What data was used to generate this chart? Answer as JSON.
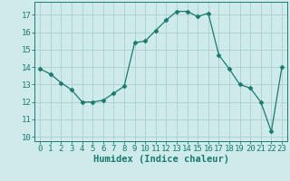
{
  "x": [
    0,
    1,
    2,
    3,
    4,
    5,
    6,
    7,
    8,
    9,
    10,
    11,
    12,
    13,
    14,
    15,
    16,
    17,
    18,
    19,
    20,
    21,
    22,
    23
  ],
  "y": [
    13.9,
    13.6,
    13.1,
    12.7,
    12.0,
    12.0,
    12.1,
    12.5,
    12.9,
    15.4,
    15.5,
    16.1,
    16.7,
    17.2,
    17.2,
    16.9,
    17.1,
    14.7,
    13.9,
    13.0,
    12.8,
    12.0,
    10.3,
    14.0
  ],
  "xlabel": "Humidex (Indice chaleur)",
  "xlim": [
    -0.5,
    23.5
  ],
  "ylim": [
    9.75,
    17.75
  ],
  "yticks": [
    10,
    11,
    12,
    13,
    14,
    15,
    16,
    17
  ],
  "xticks": [
    0,
    1,
    2,
    3,
    4,
    5,
    6,
    7,
    8,
    9,
    10,
    11,
    12,
    13,
    14,
    15,
    16,
    17,
    18,
    19,
    20,
    21,
    22,
    23
  ],
  "line_color": "#1a7a6e",
  "marker": "D",
  "marker_size": 2.5,
  "bg_color": "#ceeaea",
  "grid_color": "#aecece",
  "label_fontsize": 7.5,
  "tick_fontsize": 6.5
}
